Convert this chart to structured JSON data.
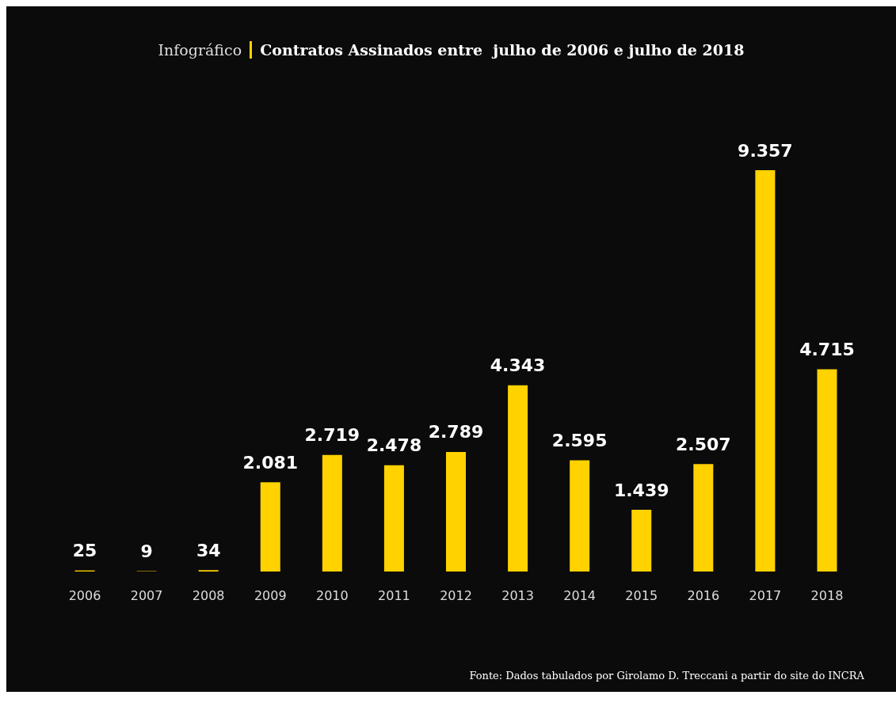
{
  "chart_data": {
    "type": "bar",
    "title": "Contratos Assinados entre  julho de 2006 e julho de 2018",
    "subtitle": "Infográfico",
    "categories": [
      "2006",
      "2007",
      "2008",
      "2009",
      "2010",
      "2011",
      "2012",
      "2013",
      "2014",
      "2015",
      "2016",
      "2017",
      "2018"
    ],
    "values": [
      25,
      9,
      34,
      2081,
      2719,
      2478,
      2789,
      4343,
      2595,
      1439,
      2507,
      9357,
      4715
    ],
    "value_labels": [
      "25",
      "9",
      "34",
      "2.081",
      "2.719",
      "2.478",
      "2.789",
      "4.343",
      "2.595",
      "1.439",
      "2.507",
      "9.357",
      "4.715"
    ],
    "color": "#ffd200",
    "annotations": [
      "Fonte: Dados tabulados por Girolamo D. Treccani a partir do site do INCRA"
    ]
  }
}
